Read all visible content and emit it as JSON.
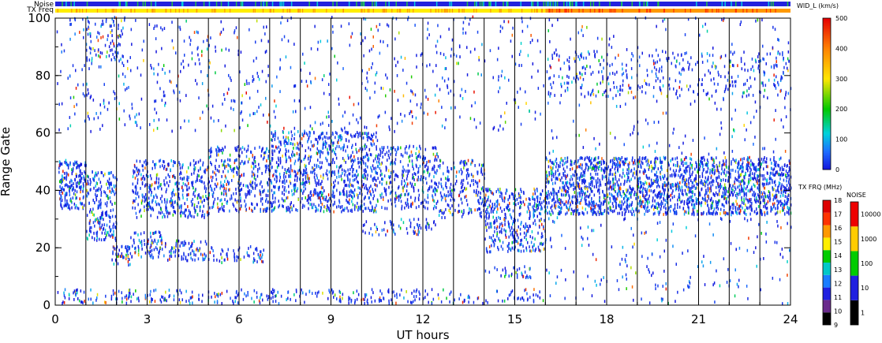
{
  "chart_data": {
    "type": "heatmap",
    "xlabel": "UT hours",
    "ylabel": "Range Gate",
    "xlim": [
      0,
      24
    ],
    "ylim": [
      0,
      100
    ],
    "xticks": [
      0,
      3,
      6,
      9,
      12,
      15,
      18,
      21,
      24
    ],
    "yticks": [
      0,
      20,
      40,
      60,
      80,
      100
    ],
    "hour_grid_lines": true,
    "top_bars": {
      "noise_label": "Noise",
      "txfreq_label": "TX Freq"
    },
    "colorbars": [
      {
        "name": "WID_L (km/s)",
        "range": [
          0,
          500
        ],
        "ticks": [
          0,
          100,
          200,
          300,
          400,
          500
        ],
        "placement": "right-top"
      },
      {
        "name": "TX FRQ (MHz)",
        "range": [
          9,
          18
        ],
        "ticks": [
          9,
          10,
          11,
          12,
          13,
          14,
          15,
          16,
          17,
          18
        ],
        "colors": [
          "#000000",
          "#6a2b8c",
          "#2020e0",
          "#1a7dff",
          "#00c8c8",
          "#00cc00",
          "#ffee00",
          "#ff9900",
          "#ff3300",
          "#dd0000"
        ],
        "placement": "right-bottom"
      },
      {
        "name": "NOISE",
        "ticks": [
          1,
          10,
          100,
          1000,
          10000
        ],
        "colors": [
          "#000000",
          "#2020e0",
          "#00cc00",
          "#ffcc00",
          "#ee0000"
        ],
        "placement": "right-bottom"
      }
    ],
    "regions": [
      {
        "x": [
          0.1,
          1.0
        ],
        "y": [
          33,
          50
        ],
        "density": 0.85
      },
      {
        "x": [
          1.0,
          2.0
        ],
        "y": [
          22,
          46
        ],
        "density": 0.6
      },
      {
        "x": [
          1.0,
          2.2
        ],
        "y": [
          85,
          100
        ],
        "density": 0.25
      },
      {
        "x": [
          1.8,
          2.5
        ],
        "y": [
          13,
          20
        ],
        "density": 0.7
      },
      {
        "x": [
          2.4,
          3.5
        ],
        "y": [
          16,
          25
        ],
        "density": 0.45
      },
      {
        "x": [
          2.5,
          5.0
        ],
        "y": [
          30,
          50
        ],
        "density": 0.55
      },
      {
        "x": [
          3.0,
          5.0
        ],
        "y": [
          15,
          22
        ],
        "density": 0.45
      },
      {
        "x": [
          5.0,
          7.0
        ],
        "y": [
          32,
          55
        ],
        "density": 0.5
      },
      {
        "x": [
          5.0,
          6.8
        ],
        "y": [
          14,
          20
        ],
        "density": 0.35
      },
      {
        "x": [
          7.0,
          10.5
        ],
        "y": [
          32,
          60
        ],
        "density": 0.6
      },
      {
        "x": [
          10.5,
          12.5
        ],
        "y": [
          33,
          55
        ],
        "density": 0.5
      },
      {
        "x": [
          10.0,
          12.5
        ],
        "y": [
          24,
          30
        ],
        "density": 0.3
      },
      {
        "x": [
          12.5,
          14.0
        ],
        "y": [
          30,
          50
        ],
        "density": 0.45
      },
      {
        "x": [
          14.0,
          16.0
        ],
        "y": [
          18,
          40
        ],
        "density": 0.6
      },
      {
        "x": [
          14.0,
          15.5
        ],
        "y": [
          9,
          13
        ],
        "density": 0.4
      },
      {
        "x": [
          0.0,
          16.0
        ],
        "y": [
          0,
          5
        ],
        "density": 0.3
      },
      {
        "x": [
          0.0,
          16.0
        ],
        "y": [
          60,
          100
        ],
        "density": 0.07
      },
      {
        "x": [
          16.0,
          24.0
        ],
        "y": [
          31,
          51
        ],
        "density": 0.88
      },
      {
        "x": [
          16.0,
          24.0
        ],
        "y": [
          72,
          88
        ],
        "density": 0.18
      },
      {
        "x": [
          16.0,
          24.0
        ],
        "y": [
          0,
          30
        ],
        "density": 0.05
      },
      {
        "x": [
          16.0,
          24.0
        ],
        "y": [
          52,
          100
        ],
        "density": 0.04
      }
    ],
    "tx_freq_segments": [
      {
        "x": [
          0,
          16
        ],
        "mhz": 15
      },
      {
        "x": [
          16,
          24
        ],
        "mhz": 16
      }
    ],
    "noise_level": "10"
  }
}
